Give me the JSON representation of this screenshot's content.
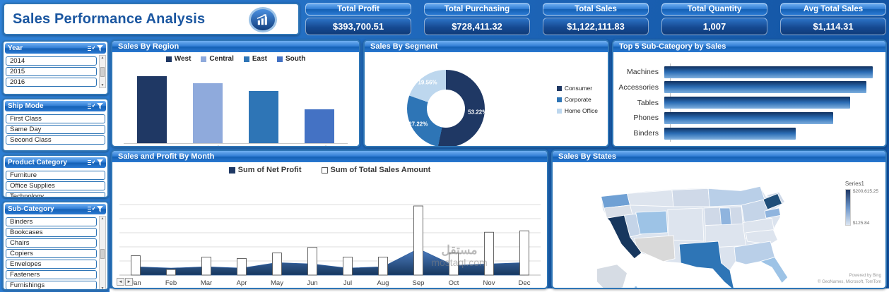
{
  "header": {
    "title": "Sales Performance Analysis",
    "kpis": [
      {
        "label": "Total Profit",
        "value": "$393,700.51"
      },
      {
        "label": "Total Purchasing",
        "value": "$728,411.32"
      },
      {
        "label": "Total Sales",
        "value": "$1,122,111.83"
      },
      {
        "label": "Total Quantity",
        "value": "1,007"
      },
      {
        "label": "Avg Total Sales",
        "value": "$1,114.31"
      }
    ]
  },
  "slicers": [
    {
      "title": "Year",
      "items": [
        "2014",
        "2015",
        "2016"
      ],
      "scrollbar": true
    },
    {
      "title": "Ship Mode",
      "items": [
        "First Class",
        "Same Day",
        "Second Class"
      ],
      "scrollbar": false
    },
    {
      "title": "Product Category",
      "items": [
        "Furniture",
        "Office Supplies",
        "Technology"
      ],
      "scrollbar": false
    },
    {
      "title": "Sub-Category",
      "items": [
        "Binders",
        "Bookcases",
        "Chairs",
        "Copiers",
        "Envelopes",
        "Fasteners",
        "Furnishings"
      ],
      "scrollbar": true
    }
  ],
  "colors": {
    "accent_dark": "#1F3864",
    "accent_mid": "#2E75B6",
    "accent_light": "#BDD7EE",
    "panel_border": "#2E75B6"
  },
  "chart_data": [
    {
      "id": "region",
      "type": "bar",
      "title": "Sales By Region",
      "categories": [
        "West",
        "Central",
        "East",
        "South"
      ],
      "values": [
        100,
        90,
        78,
        51
      ],
      "unit": "relative height, no value axis shown",
      "colors": [
        "#1F3864",
        "#8FAADC",
        "#2E75B6",
        "#4472C4"
      ],
      "legend_position": "top"
    },
    {
      "id": "segment",
      "type": "pie",
      "donut": true,
      "title": "Sales By Segment",
      "categories": [
        "Consumer",
        "Corporate",
        "Home Office"
      ],
      "values": [
        53.22,
        27.22,
        19.56
      ],
      "labels": [
        "53.22%",
        "27.22%",
        "19.56%"
      ],
      "colors": [
        "#1F3864",
        "#2E75B6",
        "#BDD7EE"
      ],
      "legend_position": "right"
    },
    {
      "id": "top5",
      "type": "bar",
      "orientation": "horizontal",
      "title": "Top 5 Sub-Category by Sales",
      "categories": [
        "Machines",
        "Accessories",
        "Tables",
        "Phones",
        "Binders"
      ],
      "values": [
        100,
        97,
        89,
        81,
        63
      ],
      "unit": "relative length, no value axis shown"
    },
    {
      "id": "monthly",
      "type": "area",
      "title": "Sales and Profit By Month",
      "categories": [
        "Jan",
        "Feb",
        "Mar",
        "Apr",
        "May",
        "Jun",
        "Jul",
        "Aug",
        "Sep",
        "Oct",
        "Nov",
        "Dec"
      ],
      "series": [
        {
          "name": "Sum of Net Profit",
          "type": "area",
          "values": [
            12,
            10,
            12,
            10,
            18,
            16,
            10,
            12,
            38,
            14,
            16,
            18
          ]
        },
        {
          "name": "Sum of Total Sales Amount",
          "type": "column",
          "values": [
            28,
            8,
            26,
            24,
            32,
            40,
            26,
            26,
            100,
            32,
            62,
            64
          ]
        }
      ],
      "unit": "relative height, no value axis shown",
      "grid": true
    },
    {
      "id": "states",
      "type": "heatmap",
      "title": "Sales By States",
      "legend": {
        "series": "Series1",
        "max": "$200,615.25",
        "min": "$125.84"
      },
      "notes": [
        "Powered by Bing",
        "© GeoNames, Microsoft, TomTom"
      ],
      "highlights": [
        {
          "state": "California",
          "level": "high"
        },
        {
          "state": "New York",
          "level": "high"
        },
        {
          "state": "Texas",
          "level": "medium"
        },
        {
          "state": "Washington",
          "level": "medium"
        }
      ]
    }
  ],
  "watermark": {
    "line1": "مستقل",
    "line2": "mostaql.com"
  }
}
